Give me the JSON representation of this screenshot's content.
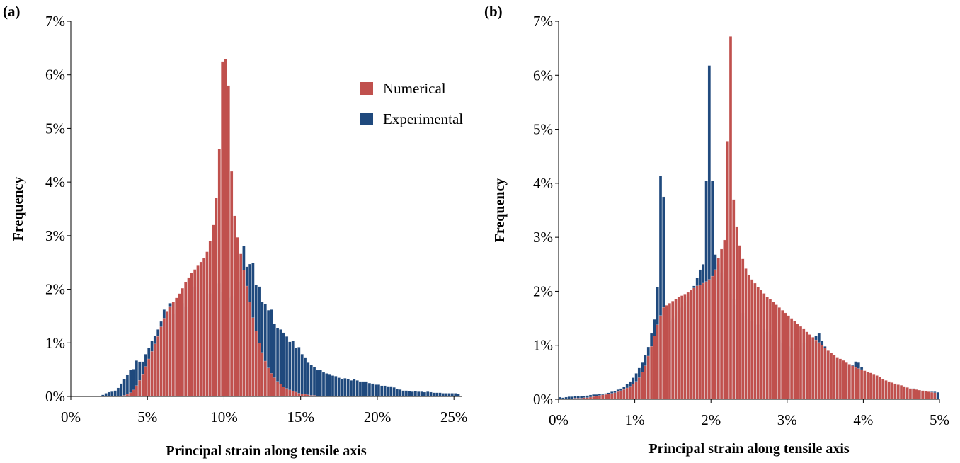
{
  "colors": {
    "numerical": "#c0504d",
    "experimental": "#1f497d",
    "axis": "#000000"
  },
  "chart_data": [
    {
      "type": "bar",
      "panel_label": "(a)",
      "xlabel": "Principal strain along tensile axis",
      "ylabel": "Frequency",
      "xlim": [
        0,
        25.5
      ],
      "ylim": [
        0,
        7
      ],
      "bin_width": 0.2,
      "x_start": 0.1,
      "x_ticks": [
        "0%",
        "5%",
        "10%",
        "15%",
        "20%",
        "25%"
      ],
      "y_ticks": [
        "0%",
        "1%",
        "2%",
        "3%",
        "4%",
        "5%",
        "6%",
        "7%"
      ],
      "legend": {
        "position": "top-right",
        "items": [
          "Numerical",
          "Experimental"
        ]
      },
      "series": [
        {
          "name": "Experimental",
          "values": [
            0.01,
            0.01,
            0.01,
            0.01,
            0.01,
            0.01,
            0.01,
            0.01,
            0.01,
            0.01,
            0.03,
            0.06,
            0.08,
            0.09,
            0.11,
            0.16,
            0.24,
            0.32,
            0.41,
            0.5,
            0.51,
            0.67,
            0.65,
            0.65,
            0.79,
            0.91,
            1.04,
            1.13,
            1.25,
            1.4,
            1.62,
            1.54,
            1.74,
            1.54,
            1.62,
            1.65,
            1.74,
            1.68,
            1.81,
            1.92,
            2.05,
            2.21,
            2.44,
            2.57,
            2.13,
            1.92,
            2.06,
            2.11,
            2.11,
            1.95,
            1.77,
            1.84,
            1.87,
            1.88,
            2.08,
            2.14,
            2.81,
            2.42,
            2.47,
            2.49,
            2.08,
            2.05,
            1.76,
            1.72,
            1.61,
            1.62,
            1.36,
            1.27,
            1.25,
            1.19,
            1.12,
            1.02,
            1.04,
            0.91,
            0.92,
            0.79,
            0.73,
            0.63,
            0.59,
            0.55,
            0.49,
            0.49,
            0.45,
            0.43,
            0.42,
            0.39,
            0.38,
            0.35,
            0.33,
            0.34,
            0.32,
            0.3,
            0.32,
            0.3,
            0.28,
            0.28,
            0.28,
            0.25,
            0.24,
            0.22,
            0.22,
            0.2,
            0.2,
            0.19,
            0.19,
            0.17,
            0.14,
            0.13,
            0.11,
            0.11,
            0.1,
            0.09,
            0.1,
            0.09,
            0.09,
            0.08,
            0.09,
            0.08,
            0.07,
            0.07,
            0.07,
            0.06,
            0.06,
            0.06,
            0.06,
            0.06,
            0.05
          ]
        },
        {
          "name": "Numerical",
          "values": [
            0,
            0,
            0,
            0,
            0,
            0,
            0,
            0,
            0,
            0,
            0,
            0,
            0,
            0,
            0,
            0,
            0.01,
            0.02,
            0.04,
            0.07,
            0.12,
            0.2,
            0.3,
            0.42,
            0.56,
            0.7,
            0.84,
            0.98,
            1.12,
            1.3,
            1.46,
            1.58,
            1.68,
            1.76,
            1.84,
            1.92,
            2.02,
            2.13,
            2.22,
            2.3,
            2.37,
            2.44,
            2.51,
            2.58,
            2.7,
            2.9,
            3.2,
            3.7,
            4.62,
            6.25,
            6.29,
            5.8,
            4.2,
            3.37,
            2.97,
            2.66,
            2.36,
            2.06,
            1.76,
            1.47,
            1.22,
            1.0,
            0.82,
            0.66,
            0.53,
            0.43,
            0.35,
            0.28,
            0.23,
            0.18,
            0.15,
            0.12,
            0.1,
            0.08,
            0.06,
            0.05,
            0.04,
            0.03,
            0.02,
            0.02,
            0.01,
            0.01,
            0.01
          ]
        }
      ]
    },
    {
      "type": "bar",
      "panel_label": "(b)",
      "xlabel": "Principal strain along tensile axis",
      "ylabel": "Frequency",
      "xlim": [
        0,
        5
      ],
      "ylim": [
        0,
        7
      ],
      "bin_width": 0.04,
      "x_start": 0.02,
      "x_ticks": [
        "0%",
        "1%",
        "2%",
        "3%",
        "4%",
        "5%"
      ],
      "y_ticks": [
        "0%",
        "1%",
        "2%",
        "3%",
        "4%",
        "5%",
        "6%",
        "7%"
      ],
      "series": [
        {
          "name": "Experimental",
          "values": [
            0.04,
            0.03,
            0.04,
            0.05,
            0.05,
            0.06,
            0.06,
            0.06,
            0.06,
            0.07,
            0.08,
            0.09,
            0.09,
            0.1,
            0.1,
            0.11,
            0.12,
            0.14,
            0.15,
            0.18,
            0.2,
            0.23,
            0.28,
            0.33,
            0.4,
            0.48,
            0.58,
            0.68,
            0.82,
            0.97,
            1.22,
            1.48,
            2.08,
            4.14,
            3.75,
            1.5,
            1.45,
            1.5,
            1.55,
            1.62,
            1.7,
            1.8,
            1.9,
            2.02,
            2.1,
            2.25,
            2.4,
            2.5,
            4.05,
            6.18,
            4.05,
            2.68,
            2.5,
            2.35,
            2.25,
            2.15,
            1.95,
            1.85,
            1.75,
            1.65,
            1.6,
            1.55,
            1.5,
            1.45,
            1.4,
            1.38,
            1.35,
            1.3,
            1.25,
            1.2,
            1.15,
            1.12,
            1.1,
            1.05,
            1.0,
            0.98,
            0.95,
            0.9,
            0.9,
            0.96,
            1.05,
            1.12,
            1.15,
            1.1,
            1.18,
            1.22,
            1.08,
            0.98,
            0.9,
            0.84,
            0.76,
            0.72,
            0.68,
            0.68,
            0.64,
            0.62,
            0.64,
            0.7,
            0.68,
            0.6,
            0.52,
            0.46,
            0.44,
            0.4,
            0.38,
            0.36,
            0.34,
            0.32,
            0.3,
            0.3,
            0.28,
            0.26,
            0.22,
            0.22,
            0.2,
            0.2,
            0.2,
            0.18,
            0.17,
            0.16,
            0.15,
            0.14,
            0.14,
            0.14,
            0.13
          ]
        },
        {
          "name": "Numerical",
          "values": [
            0.01,
            0.01,
            0.01,
            0.01,
            0.01,
            0.02,
            0.02,
            0.02,
            0.03,
            0.03,
            0.04,
            0.05,
            0.06,
            0.07,
            0.08,
            0.09,
            0.1,
            0.11,
            0.12,
            0.14,
            0.16,
            0.18,
            0.21,
            0.24,
            0.28,
            0.33,
            0.4,
            0.5,
            0.62,
            0.8,
            0.98,
            1.17,
            1.38,
            1.55,
            1.7,
            1.74,
            1.78,
            1.82,
            1.86,
            1.9,
            1.92,
            1.95,
            1.98,
            2.02,
            2.06,
            2.1,
            2.12,
            2.15,
            2.18,
            2.22,
            2.28,
            2.4,
            2.62,
            2.78,
            2.95,
            4.78,
            6.72,
            3.7,
            3.2,
            2.85,
            2.6,
            2.42,
            2.3,
            2.22,
            2.15,
            2.08,
            2.02,
            1.96,
            1.9,
            1.85,
            1.8,
            1.75,
            1.7,
            1.65,
            1.6,
            1.55,
            1.5,
            1.45,
            1.4,
            1.35,
            1.3,
            1.25,
            1.2,
            1.15,
            1.1,
            1.05,
            1.0,
            0.95,
            0.9,
            0.86,
            0.82,
            0.78,
            0.75,
            0.72,
            0.68,
            0.65,
            0.62,
            0.59,
            0.57,
            0.55,
            0.53,
            0.51,
            0.49,
            0.47,
            0.44,
            0.41,
            0.38,
            0.35,
            0.33,
            0.31,
            0.29,
            0.27,
            0.26,
            0.24,
            0.22,
            0.2,
            0.19,
            0.18,
            0.17,
            0.16,
            0.15,
            0.14,
            0.13,
            0.12
          ]
        }
      ]
    }
  ]
}
